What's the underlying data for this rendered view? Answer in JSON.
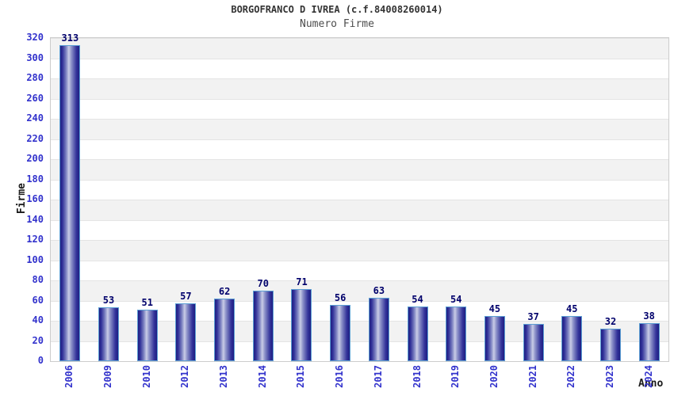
{
  "chart_data": {
    "type": "bar",
    "title": "BORGOFRANCO D IVREA (c.f.84008260014)",
    "subtitle": "Numero Firme",
    "xlabel": "Anno",
    "ylabel": "Firme",
    "categories": [
      "2006",
      "2009",
      "2010",
      "2012",
      "2013",
      "2014",
      "2015",
      "2016",
      "2017",
      "2018",
      "2019",
      "2020",
      "2021",
      "2022",
      "2023",
      "2024"
    ],
    "values": [
      313,
      53,
      51,
      57,
      62,
      70,
      71,
      56,
      63,
      54,
      54,
      45,
      37,
      45,
      32,
      38
    ],
    "ylim": [
      0,
      320
    ],
    "ytick_step": 20,
    "grid": "alternating horizontal bands every 20 units, light gray gridlines",
    "legend": "none",
    "colors": {
      "tick_label_blue": "#3232cc",
      "value_label_navy": "#00006b",
      "bar_edge_dark": "#1e1e82",
      "bar_mid": "#7a7fc0",
      "bar_center_light": "#c9cce6",
      "bar_border_lightblue": "#5c9fd4",
      "band_gray": "#f2f2f2",
      "band_white": "#ffffff",
      "gridline": "#e4e4e4",
      "plot_border": "#cccccc",
      "title_color": "#333333",
      "subtitle_color": "#4d4d4d",
      "axis_title_color": "#1a1a1a"
    }
  }
}
